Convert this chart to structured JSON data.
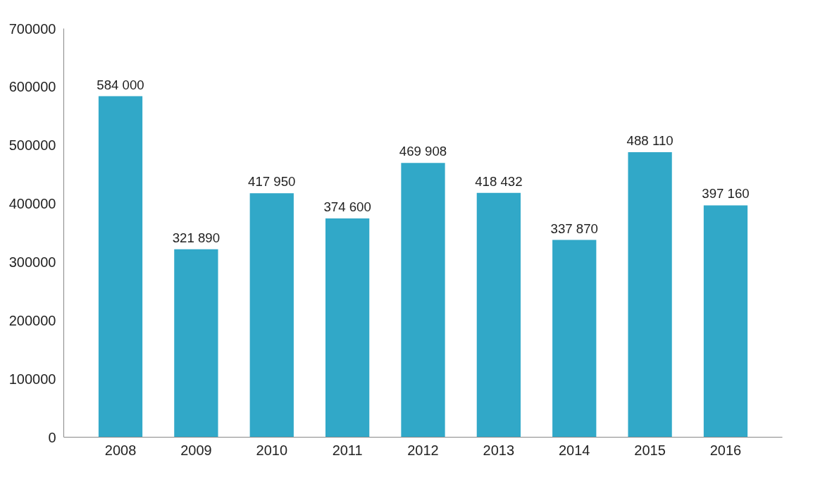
{
  "chart_data": {
    "type": "bar",
    "categories": [
      "2008",
      "2009",
      "2010",
      "2011",
      "2012",
      "2013",
      "2014",
      "2015",
      "2016"
    ],
    "values": [
      584000,
      321890,
      417950,
      374600,
      469908,
      418432,
      337870,
      488110,
      397160
    ],
    "value_labels": [
      "584 000",
      "321 890",
      "417 950",
      "374 600",
      "469 908",
      "418 432",
      "337 870",
      "488 110",
      "397 160"
    ],
    "color": "#31a8c8",
    "ylim": [
      0,
      700000
    ],
    "yticks": [
      0,
      100000,
      200000,
      300000,
      400000,
      500000,
      600000,
      700000
    ],
    "grid": false
  }
}
